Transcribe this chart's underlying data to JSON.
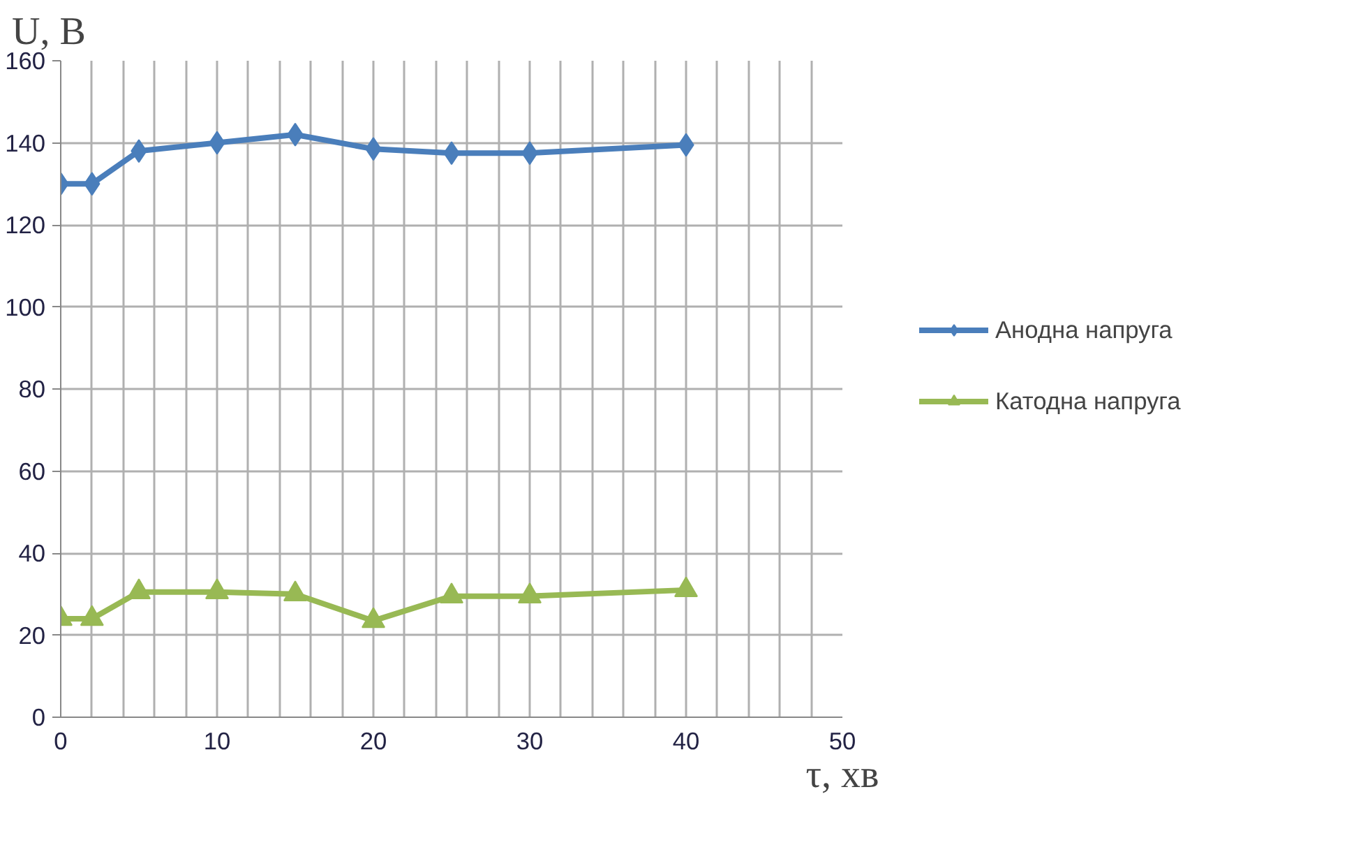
{
  "chart_data": {
    "type": "line",
    "xlabel": "τ, хв",
    "ylabel": "U, В",
    "x": [
      0,
      2,
      5,
      10,
      15,
      20,
      25,
      30,
      40
    ],
    "series": [
      {
        "name": "Анодна напруга",
        "color": "#4a7ebb",
        "marker": "diamond",
        "values": [
          130,
          130,
          138,
          140,
          142,
          138.5,
          137.5,
          137.5,
          139.5
        ]
      },
      {
        "name": "Катодна напруга",
        "color": "#98b954",
        "marker": "triangle",
        "values": [
          24,
          24,
          30.5,
          30.5,
          30,
          23.5,
          29.5,
          29.5,
          31
        ]
      }
    ],
    "xlim": [
      0,
      50
    ],
    "ylim": [
      0,
      160
    ],
    "xticks": [
      0,
      {
        "value": 2,
        "label": null
      },
      {
        "value": 4,
        "label": null
      },
      {
        "value": 6,
        "label": null
      },
      {
        "value": 8,
        "label": null
      },
      10,
      {
        "value": 12,
        "label": null
      },
      {
        "value": 14,
        "label": null
      },
      {
        "value": 16,
        "label": null
      },
      {
        "value": 18,
        "label": null
      },
      20,
      {
        "value": 22,
        "label": null
      },
      {
        "value": 24,
        "label": null
      },
      {
        "value": 26,
        "label": null
      },
      {
        "value": 28,
        "label": null
      },
      30,
      {
        "value": 32,
        "label": null
      },
      {
        "value": 34,
        "label": null
      },
      {
        "value": 36,
        "label": null
      },
      {
        "value": 38,
        "label": null
      },
      40,
      {
        "value": 42,
        "label": null
      },
      {
        "value": 44,
        "label": null
      },
      {
        "value": 46,
        "label": null
      },
      {
        "value": 48,
        "label": null
      },
      50
    ],
    "yticks": [
      0,
      20,
      40,
      60,
      80,
      100,
      120,
      140,
      160
    ],
    "grid": true,
    "legend": "right",
    "line_style": "solid"
  }
}
